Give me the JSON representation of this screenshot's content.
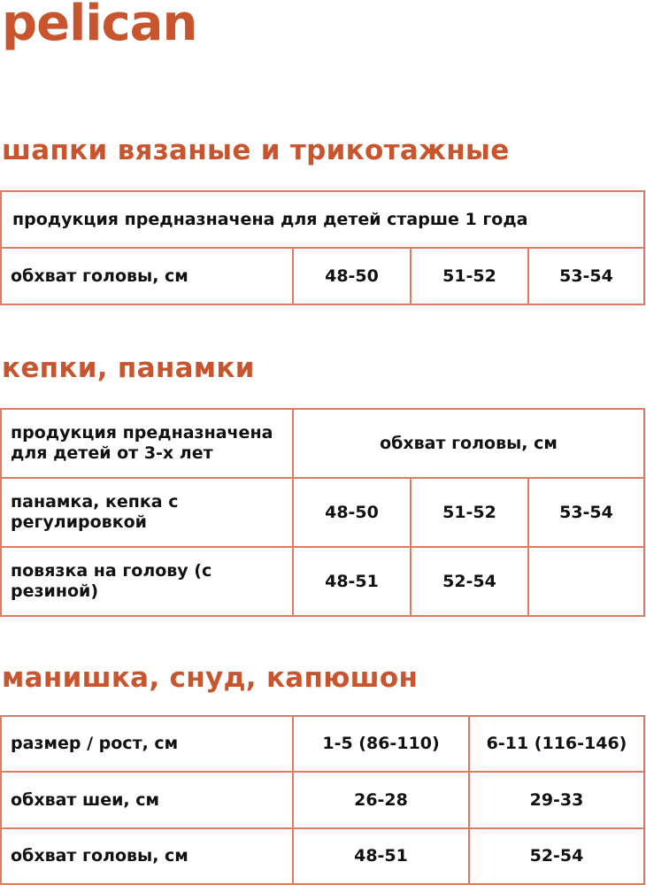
{
  "brand": {
    "logo": "pelican",
    "color": "#c9552f",
    "border_color": "#dc7c62"
  },
  "sections": [
    {
      "title": "шапки вязаные и трикотажные",
      "note": "продукция предназначена для детей старше 1 года",
      "row_label": "обхват головы, см",
      "sizes": [
        "48-50",
        "51-52",
        "53-54"
      ]
    },
    {
      "title": "кепки, панамки",
      "header_label": "продукция предназначена для детей от 3-х лет",
      "header_value": "обхват головы, см",
      "rows": [
        {
          "label": "панамка, кепка с регулировкой",
          "values": [
            "48-50",
            "51-52",
            "53-54"
          ]
        },
        {
          "label": "повязка на голову (с резиной)",
          "values": [
            "48-51",
            "52-54",
            ""
          ]
        }
      ]
    },
    {
      "title": "манишка, снуд, капюшон",
      "rows": [
        {
          "label": "размер / рост, см",
          "values": [
            "1-5 (86-110)",
            "6-11 (116-146)"
          ]
        },
        {
          "label": "обхват шеи, см",
          "values": [
            "26-28",
            "29-33"
          ]
        },
        {
          "label": "обхват головы, см",
          "values": [
            "48-51",
            "52-54"
          ]
        }
      ]
    }
  ]
}
